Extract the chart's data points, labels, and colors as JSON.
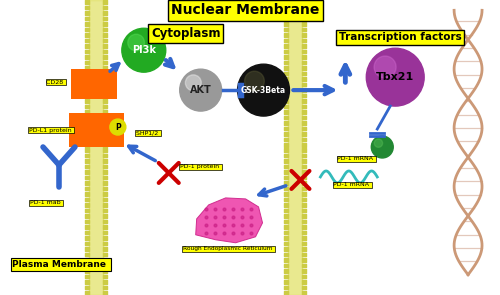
{
  "bg_color": "#ffffff",
  "title_nuclear": "Nuclear Membrane",
  "title_cytoplasm": "Cytoplasm",
  "title_transcription": "Transcription factors",
  "title_plasma": "Plasma Membrane ",
  "label_cd28": "CD28 ",
  "label_pdl1": "PD-L1 protein ",
  "label_pd1mab": "PD-1 mab ",
  "label_shp": "SHP1/2 ",
  "label_pi3k": "PI3k",
  "label_akt": "AKT",
  "label_gsk": "GSK-3Beta",
  "label_tbx21": "Tbx21",
  "label_pd1protein": "PD-1 protein ",
  "label_rer": "Rough Endoplasmic Reticulum ",
  "label_pd1mrna1": "PD-1 mRNA ",
  "label_pd1mrna2": "PD-1 mRNA ",
  "label_p": "P",
  "membrane_color_outer": "#cccc44",
  "membrane_color_inner": "#e0e060",
  "orange_color": "#ff6600",
  "blue_arrow_color": "#3366cc",
  "red_cross_color": "#cc0000",
  "yellow_label_bg": "#ffff00",
  "pi3k_color": "#22aa22",
  "pi3k_hi": "#55dd55",
  "akt_color_dark": "#999999",
  "akt_color_light": "#cccccc",
  "gsk_color_dark": "#111111",
  "gsk_color_light": "#555533",
  "tbx21_color": "#993399",
  "tbx21_hi": "#cc66cc",
  "green_ball_color": "#228833",
  "green_ball_hi": "#55bb55",
  "wave_color": "#33bbbb",
  "dna_strand1": "#cc9977",
  "dna_strand2": "#cc9977",
  "dna_rung": "#ddbbaa",
  "pink_er": "#ee44aa",
  "pink_er_edge": "#cc2288"
}
